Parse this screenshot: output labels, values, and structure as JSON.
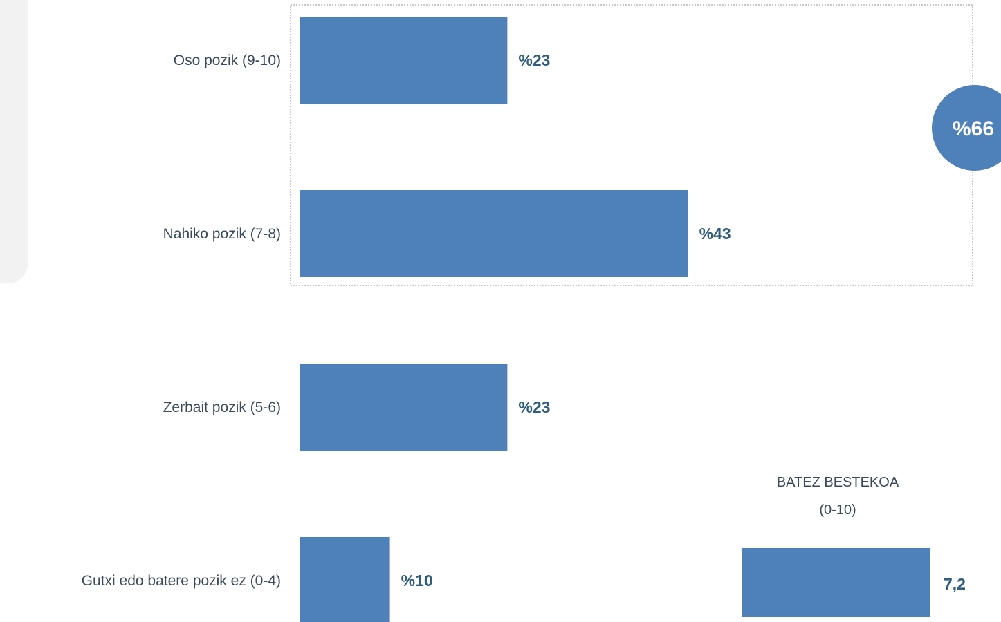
{
  "chart_data": {
    "type": "bar",
    "orientation": "horizontal",
    "categories": [
      "Oso pozik (9-10)",
      "Nahiko pozik (7-8)",
      "Zerbait pozik (5-6)",
      "Gutxi edo batere pozik ez (0-4)"
    ],
    "values": [
      23,
      43,
      23,
      10
    ],
    "value_labels": [
      "%23",
      "%43",
      "%23",
      "%10"
    ],
    "unit": "%",
    "xlim": [
      0,
      50
    ],
    "grid": false,
    "bar_color": "#4e80ba",
    "label_color": "#2e5d7e",
    "group_total": {
      "label": "%66",
      "value": 66,
      "categories": [
        "Oso pozik (9-10)",
        "Nahiko pozik (7-8)"
      ]
    },
    "average": {
      "title_line1": "BATEZ BESTEKOA",
      "title_line2": "(0-10)",
      "value": 7.2,
      "value_label": "7,2",
      "scale": [
        0,
        10
      ]
    }
  }
}
